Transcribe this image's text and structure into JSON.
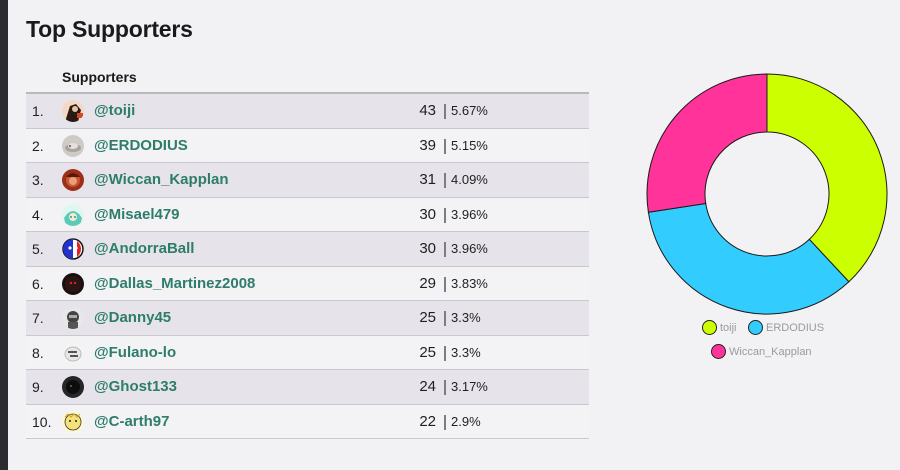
{
  "header": {
    "title": "Top Supporters"
  },
  "table": {
    "column_header": "Supporters",
    "rows": [
      {
        "rank": "1.",
        "name": "@toiji",
        "count": "43",
        "percent": "5.67%",
        "avatar_icon": "avatar-icon"
      },
      {
        "rank": "2.",
        "name": "@ERDODIUS",
        "count": "39",
        "percent": "5.15%",
        "avatar_icon": "avatar-icon"
      },
      {
        "rank": "3.",
        "name": "@Wiccan_Kapplan",
        "count": "31",
        "percent": "4.09%",
        "avatar_icon": "avatar-icon"
      },
      {
        "rank": "4.",
        "name": "@Misael479",
        "count": "30",
        "percent": "3.96%",
        "avatar_icon": "avatar-icon"
      },
      {
        "rank": "5.",
        "name": "@AndorraBall",
        "count": "30",
        "percent": "3.96%",
        "avatar_icon": "avatar-icon"
      },
      {
        "rank": "6.",
        "name": "@Dallas_Martinez2008",
        "count": "29",
        "percent": "3.83%",
        "avatar_icon": "avatar-icon"
      },
      {
        "rank": "7.",
        "name": "@Danny45",
        "count": "25",
        "percent": "3.3%",
        "avatar_icon": "avatar-icon"
      },
      {
        "rank": "8.",
        "name": "@Fulano-lo",
        "count": "25",
        "percent": "3.3%",
        "avatar_icon": "avatar-icon"
      },
      {
        "rank": "9.",
        "name": "@Ghost133",
        "count": "24",
        "percent": "3.17%",
        "avatar_icon": "avatar-icon"
      },
      {
        "rank": "10.",
        "name": "@C-arth97",
        "count": "22",
        "percent": "2.9%",
        "avatar_icon": "avatar-icon"
      }
    ]
  },
  "chart_data": {
    "type": "pie",
    "donut": true,
    "categories": [
      "toiji",
      "ERDODIUS",
      "Wiccan_Kapplan"
    ],
    "values": [
      43,
      39,
      31
    ],
    "colors": [
      "#ccff00",
      "#33ccff",
      "#ff3399"
    ],
    "legend_position": "bottom"
  },
  "colors": {
    "link": "#2e7d6b",
    "background": "#f2f1f4",
    "row_alt": "#e6e4ea"
  }
}
